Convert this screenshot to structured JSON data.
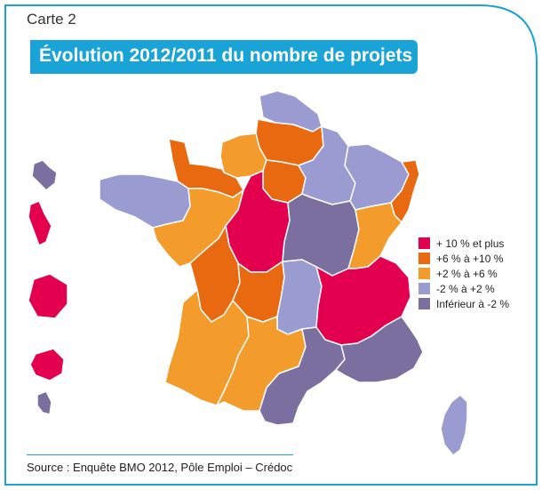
{
  "header": {
    "carte_label": "Carte 2",
    "title": "Évolution 2012/2011 du nombre de projets"
  },
  "colors": {
    "frame": "#1aa3d6",
    "banner": "#1aa3d6",
    "cat_plus10": "#e3004f",
    "cat_6_10": "#e8690f",
    "cat_2_6": "#f39c2c",
    "cat_m2_2": "#9a9bd0",
    "cat_below_m2": "#7b6fa0",
    "borders": "#ffffff"
  },
  "legend": {
    "items": [
      {
        "label": "+ 10 % et plus",
        "color": "#e3004f"
      },
      {
        "label": "+6 % à +10 %",
        "color": "#e8690f"
      },
      {
        "label": "+2 % à +6 %",
        "color": "#f39c2c"
      },
      {
        "label": "-2 % à +2 %",
        "color": "#9a9bd0"
      },
      {
        "label": "Inférieur à -2 %",
        "color": "#7b6fa0"
      }
    ]
  },
  "regions": [
    {
      "name": "Nord-Pas-de-Calais",
      "category": "-2 % à +2 %"
    },
    {
      "name": "Picardie",
      "category": "+6 % à +10 %"
    },
    {
      "name": "Haute-Normandie",
      "category": "+2 % à +6 %"
    },
    {
      "name": "Basse-Normandie",
      "category": "+6 % à +10 %"
    },
    {
      "name": "Île-de-France",
      "category": "+6 % à +10 %"
    },
    {
      "name": "Champagne-Ardenne",
      "category": "-2 % à +2 %"
    },
    {
      "name": "Lorraine",
      "category": "-2 % à +2 %"
    },
    {
      "name": "Alsace",
      "category": "+6 % à +10 %"
    },
    {
      "name": "Bretagne",
      "category": "-2 % à +2 %"
    },
    {
      "name": "Pays de la Loire",
      "category": "+2 % à +6 %"
    },
    {
      "name": "Centre",
      "category": "+ 10 % et plus"
    },
    {
      "name": "Bourgogne",
      "category": "Inférieur à -2 %"
    },
    {
      "name": "Franche-Comté",
      "category": "+2 % à +6 %"
    },
    {
      "name": "Poitou-Charentes",
      "category": "+6 % à +10 %"
    },
    {
      "name": "Limousin",
      "category": "+6 % à +10 %"
    },
    {
      "name": "Auvergne",
      "category": "-2 % à +2 %"
    },
    {
      "name": "Rhône-Alpes",
      "category": "+ 10 % et plus"
    },
    {
      "name": "Aquitaine",
      "category": "+2 % à +6 %"
    },
    {
      "name": "Midi-Pyrénées",
      "category": "+2 % à +6 %"
    },
    {
      "name": "Languedoc-Roussillon",
      "category": "Inférieur à -2 %"
    },
    {
      "name": "Provence-Alpes-Côte d'Azur",
      "category": "Inférieur à -2 %"
    },
    {
      "name": "Corse",
      "category": "-2 % à +2 %"
    },
    {
      "name": "Guadeloupe",
      "category": "Inférieur à -2 %"
    },
    {
      "name": "Martinique",
      "category": "+ 10 % et plus"
    },
    {
      "name": "Guyane",
      "category": "+ 10 % et plus"
    },
    {
      "name": "La Réunion",
      "category": "+ 10 % et plus"
    },
    {
      "name": "Mayotte",
      "category": "Inférieur à -2 %"
    }
  ],
  "source": "Source : Enquête BMO 2012, Pôle Emploi – Crédoc"
}
